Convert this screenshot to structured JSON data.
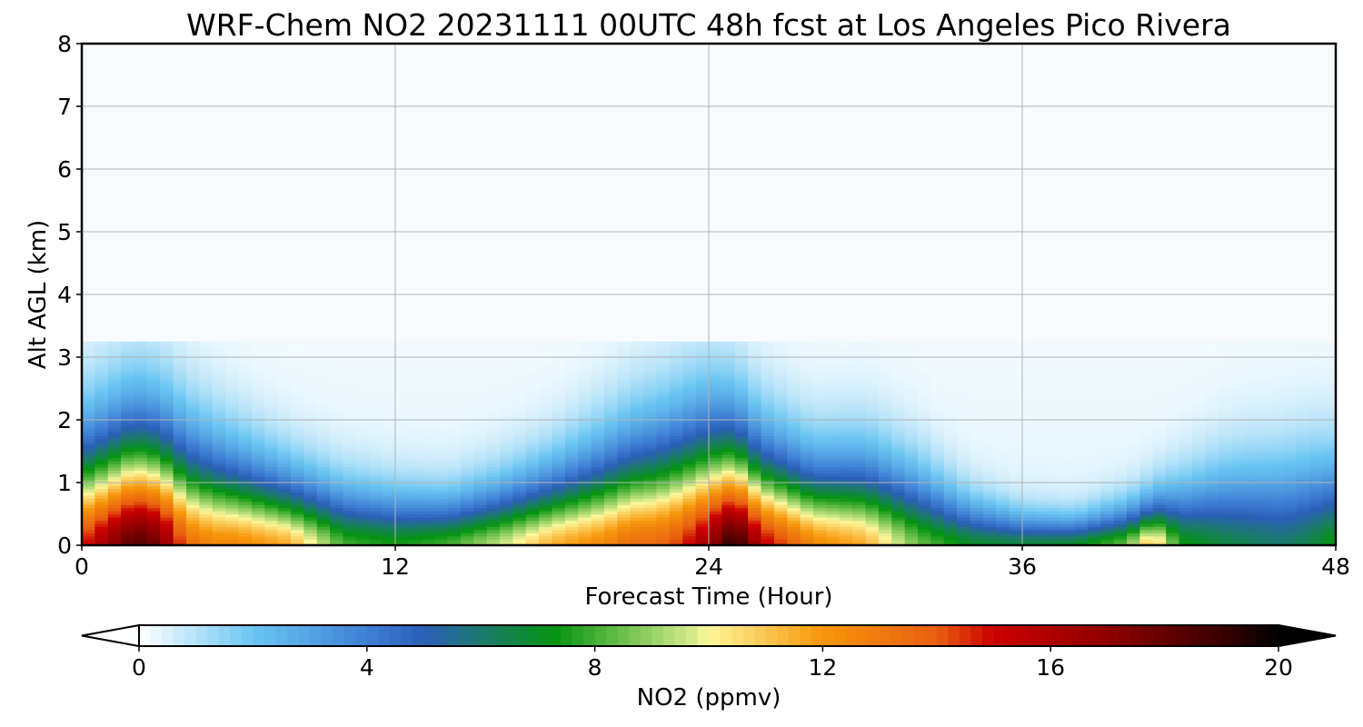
{
  "chart_data": {
    "type": "heatmap",
    "title": "WRF-Chem NO2  20231111 00UTC 48h fcst at Los Angeles Pico Rivera",
    "xlabel": "Forecast Time (Hour)",
    "ylabel": "Alt AGL (km)",
    "xlim": [
      0,
      48
    ],
    "ylim": [
      0,
      8
    ],
    "xticks": [
      0,
      12,
      24,
      36,
      48
    ],
    "yticks": [
      0,
      1,
      2,
      3,
      4,
      5,
      6,
      7,
      8
    ],
    "grid": true,
    "colorbar": {
      "label": "NO2  (ppmv)",
      "range": [
        0,
        20
      ],
      "ticks": [
        0,
        4,
        8,
        12,
        16,
        20
      ],
      "extend": "both",
      "stops": [
        {
          "v": 0,
          "c": "#ffffff"
        },
        {
          "v": 2,
          "c": "#6ac5f2"
        },
        {
          "v": 4,
          "c": "#3f7fd4"
        },
        {
          "v": 5,
          "c": "#2b5fb8"
        },
        {
          "v": 6,
          "c": "#1d7a6f"
        },
        {
          "v": 7.3,
          "c": "#059410"
        },
        {
          "v": 9.7,
          "c": "#d4ea8a"
        },
        {
          "v": 10,
          "c": "#fff79a"
        },
        {
          "v": 12,
          "c": "#f6960a"
        },
        {
          "v": 14,
          "c": "#e85f10"
        },
        {
          "v": 15,
          "c": "#cc0000"
        },
        {
          "v": 17,
          "c": "#8f0000"
        },
        {
          "v": 19,
          "c": "#3a0000"
        },
        {
          "v": 20,
          "c": "#000000"
        }
      ]
    },
    "profile_hours": [
      0,
      1,
      2,
      3,
      4,
      5,
      6,
      8,
      10,
      12,
      14,
      16,
      18,
      20,
      21,
      22,
      23,
      24,
      25,
      26,
      28,
      30,
      32,
      34,
      36,
      38,
      40,
      41,
      42,
      44,
      46,
      47,
      48
    ],
    "surface_no2": [
      14,
      16,
      18,
      17,
      13,
      12,
      12,
      11,
      7.5,
      7,
      7.5,
      9,
      11,
      12,
      13,
      13,
      14,
      16,
      19,
      15,
      12,
      11,
      8,
      6.5,
      6.2,
      6.5,
      8,
      11,
      7,
      6,
      5.5,
      6,
      7
    ],
    "mixing_height_km": [
      1.6,
      1.7,
      1.8,
      1.75,
      1.6,
      1.45,
      1.3,
      1.05,
      0.9,
      0.8,
      0.75,
      0.9,
      1.1,
      1.4,
      1.55,
      1.65,
      1.75,
      1.8,
      1.7,
      1.5,
      1.25,
      1.3,
      1.1,
      0.7,
      0.5,
      0.45,
      0.6,
      0.7,
      0.9,
      1.2,
      1.3,
      1.35,
      1.3
    ]
  }
}
